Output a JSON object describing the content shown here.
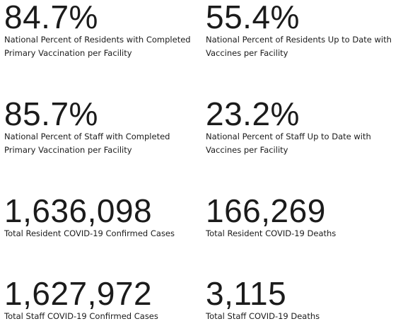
{
  "stats": [
    {
      "value": "84.7%",
      "label": "National Percent of Residents with Completed Primary Vaccination per Facility"
    },
    {
      "value": "55.4%",
      "label": "National Percent of Residents Up to Date with Vaccines per Facility"
    },
    {
      "value": "85.7%",
      "label": "National Percent of Staff with Completed Primary Vaccination per Facility"
    },
    {
      "value": "23.2%",
      "label": "National Percent of Staff Up to Date with Vaccines per Facility"
    },
    {
      "value": "1,636,098",
      "label": "Total Resident COVID-19 Confirmed Cases"
    },
    {
      "value": "166,269",
      "label": "Total Resident COVID-19 Deaths"
    },
    {
      "value": "1,627,972",
      "label": "Total Staff COVID-19 Confirmed Cases"
    },
    {
      "value": "3,115",
      "label": "Total Staff COVID-19 Deaths"
    }
  ]
}
